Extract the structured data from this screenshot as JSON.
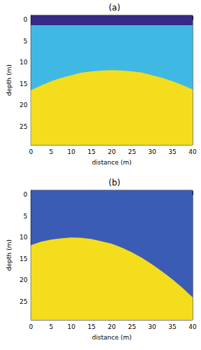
{
  "chart_data": [
    {
      "type": "area",
      "title": "(a)",
      "x_label": "distance (m)",
      "y_label": "depth (m)",
      "x": [
        0,
        2.5,
        5,
        7.5,
        10,
        12.5,
        15,
        17.5,
        20,
        22.5,
        25,
        27.5,
        30,
        32.5,
        35,
        37.5,
        40
      ],
      "series": [
        {
          "color": "#352a87",
          "values": [
            -1,
            -1,
            -1,
            -1,
            -1,
            -1,
            -1,
            -1,
            -1,
            -1,
            -1,
            -1,
            -1,
            -1,
            -1,
            -1,
            -1
          ]
        },
        {
          "color": "#3fb9e3",
          "values": [
            1.3,
            1.3,
            1.3,
            1.3,
            1.3,
            1.3,
            1.3,
            1.3,
            1.3,
            1.3,
            1.3,
            1.3,
            1.3,
            1.3,
            1.3,
            1.3,
            1.3
          ]
        },
        {
          "color": "#f4dd1c",
          "values": [
            16.5,
            15.4,
            14.4,
            13.6,
            13.0,
            12.4,
            12.1,
            11.9,
            11.8,
            11.9,
            12.1,
            12.4,
            13.0,
            13.6,
            14.4,
            15.3,
            16.3
          ]
        }
      ],
      "xlim": [
        0,
        40
      ],
      "xticks": [
        0,
        5,
        10,
        15,
        20,
        25,
        30,
        35,
        40
      ],
      "ylim": [
        -1,
        29.3
      ],
      "yticks": [
        0,
        5,
        10,
        15,
        20,
        25
      ]
    },
    {
      "type": "area",
      "title": "(b)",
      "x_label": "distance (m)",
      "y_label": "depth (m)",
      "x": [
        0,
        2.5,
        5,
        7.5,
        10,
        12.5,
        15,
        17.5,
        20,
        22.5,
        25,
        27.5,
        30,
        32.5,
        35,
        37.5,
        40
      ],
      "series": [
        {
          "color": "#3b5cb5",
          "values": [
            -1,
            -1,
            -1,
            -1,
            -1,
            -1,
            -1,
            -1,
            -1,
            -1,
            -1,
            -1,
            -1,
            -1,
            -1,
            -1,
            -1
          ]
        },
        {
          "color": "#f4dd1c",
          "values": [
            11.8,
            11.0,
            10.5,
            10.2,
            10.0,
            10.1,
            10.4,
            10.9,
            11.5,
            12.4,
            13.5,
            14.8,
            16.3,
            18.0,
            19.8,
            21.8,
            24.0
          ]
        }
      ],
      "xlim": [
        0,
        40
      ],
      "xticks": [
        0,
        5,
        10,
        15,
        20,
        25,
        30,
        35,
        40
      ],
      "ylim": [
        -1,
        29.3
      ],
      "yticks": [
        0,
        5,
        10,
        15,
        20,
        25
      ]
    }
  ]
}
